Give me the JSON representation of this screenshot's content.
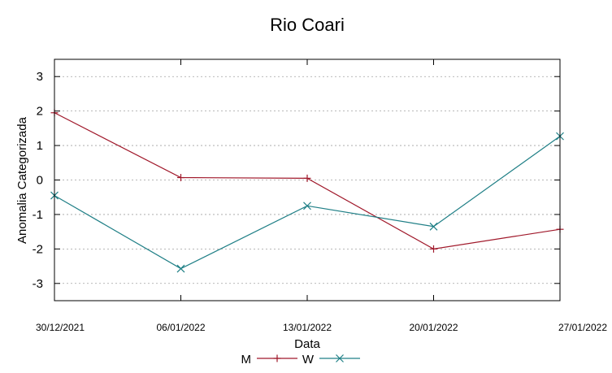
{
  "chart_data": {
    "type": "line",
    "title": "Rio Coari",
    "xlabel": "Data",
    "ylabel": "Anomalia Categorizada",
    "categories": [
      "30/12/2021",
      "06/01/2022",
      "13/01/2022",
      "20/01/2022",
      "27/01/2022"
    ],
    "ylim": [
      -3.5,
      3.5
    ],
    "yticks": [
      3,
      2,
      1,
      0,
      -1,
      -2,
      -3
    ],
    "ytick_labels": [
      "3",
      "2",
      "1",
      "0",
      "-1",
      "-2",
      "-3"
    ],
    "grid": true,
    "legend_position": "bottom-center",
    "series": [
      {
        "name": "M",
        "color": "#a0182a",
        "marker": "plus",
        "values": [
          1.95,
          0.07,
          0.05,
          -2.0,
          -1.43
        ]
      },
      {
        "name": "W",
        "color": "#1f7f86",
        "marker": "cross",
        "values": [
          -0.45,
          -2.57,
          -0.75,
          -1.35,
          1.27
        ]
      }
    ]
  }
}
